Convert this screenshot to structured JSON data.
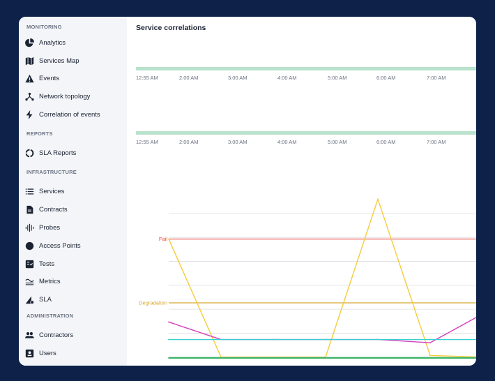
{
  "sidebar": {
    "sections": [
      {
        "title": "MONITORING",
        "items": [
          {
            "label": "Analytics",
            "icon": "pie-chart-icon"
          },
          {
            "label": "Services Map",
            "icon": "map-icon"
          },
          {
            "label": "Events",
            "icon": "warning-icon"
          },
          {
            "label": "Network topology",
            "icon": "topology-icon"
          },
          {
            "label": "Correlation of events",
            "icon": "lightning-icon"
          }
        ]
      },
      {
        "title": "REPORTS",
        "items": [
          {
            "label": "SLA Reports",
            "icon": "circle-progress-icon"
          }
        ]
      },
      {
        "title": "INFRASTRUCTURE",
        "items": [
          {
            "label": "Services",
            "icon": "list-icon"
          },
          {
            "label": "Contracts",
            "icon": "document-icon"
          },
          {
            "label": "Probes",
            "icon": "probe-icon"
          },
          {
            "label": "Access Points",
            "icon": "dot-icon"
          },
          {
            "label": "Tests",
            "icon": "tests-icon"
          },
          {
            "label": "Metrics",
            "icon": "metrics-icon"
          },
          {
            "label": "SLA",
            "icon": "sla-icon"
          }
        ]
      },
      {
        "title": "ADMINISTRATION",
        "items": [
          {
            "label": "Contractors",
            "icon": "people-icon"
          },
          {
            "label": "Users",
            "icon": "user-icon"
          }
        ]
      }
    ]
  },
  "main": {
    "title": "Service correlations",
    "timeline_1": {
      "times": [
        "12:55 AM",
        "2:00 AM",
        "3:00 AM",
        "4:00 AM",
        "5:00 AM",
        "6:00 AM",
        "7:00 AM"
      ]
    },
    "timeline_2": {
      "times": [
        "12:55 AM",
        "2:00 AM",
        "3:00 AM",
        "4:00 AM",
        "5:00 AM",
        "6:00 AM",
        "7:00 AM"
      ]
    }
  },
  "colors": {
    "background": "#0d2149",
    "timeline_bar": "#b9e2cc",
    "fail": "#e8473c",
    "degradation": "#d4a72c",
    "yellow_series": "#f5cc3a",
    "magenta_series": "#d53fc0",
    "cyan_series": "#35d0d0",
    "green_series": "#3cb56a"
  },
  "chart_data": {
    "type": "line",
    "thresholds": [
      {
        "name": "Fail",
        "value": 7.5,
        "color": "#e8473c"
      },
      {
        "name": "Degradation",
        "value": 3.5,
        "color": "#d4a72c"
      }
    ],
    "x": [
      0,
      1,
      2,
      3,
      4,
      5,
      6
    ],
    "ylim": [
      0,
      10.5
    ],
    "grid": true,
    "series": [
      {
        "color": "#f5cc3a",
        "values": [
          7.5,
          0.1,
          0.1,
          0.1,
          10.0,
          0.2,
          0.1
        ]
      },
      {
        "color": "#d53fc0",
        "values": [
          2.3,
          1.2,
          1.2,
          1.2,
          1.2,
          1.0,
          2.8
        ]
      },
      {
        "color": "#35d0d0",
        "values": [
          1.2,
          1.2,
          1.2,
          1.2,
          1.2,
          1.2,
          1.2
        ]
      },
      {
        "color": "#3cb56a",
        "values": [
          0.05,
          0.05,
          0.05,
          0.05,
          0.05,
          0.05,
          0.05
        ]
      }
    ]
  }
}
